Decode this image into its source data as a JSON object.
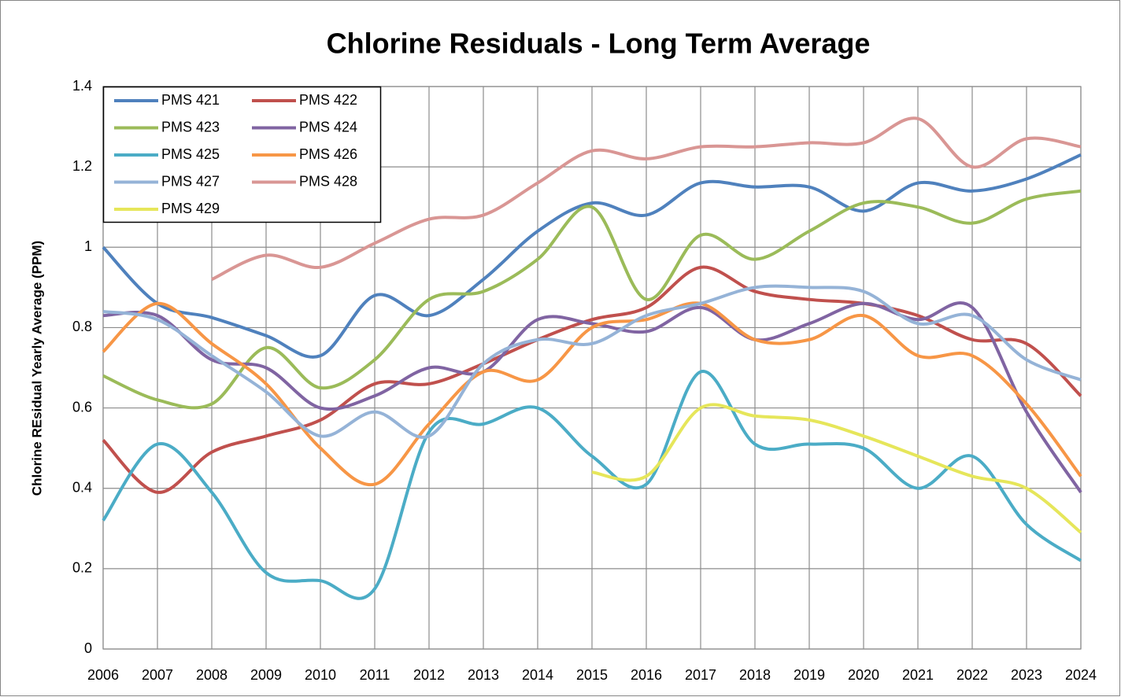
{
  "chart_data": {
    "type": "line",
    "title": "Chlorine Residuals - Long Term Average",
    "y_label": "Chlorine REsidual Yearly Average (PPM)",
    "categories": [
      "2006",
      "2007",
      "2008",
      "2009",
      "2010",
      "2011",
      "2012",
      "2013",
      "2014",
      "2015",
      "2016",
      "2017",
      "2018",
      "2019",
      "2020",
      "2021",
      "2022",
      "2023",
      "2024"
    ],
    "ylim": [
      0,
      1.4
    ],
    "yticks": [
      0,
      0.2,
      0.4,
      0.6,
      0.8,
      1,
      1.2,
      1.4
    ],
    "grid": true,
    "smooth": true,
    "legend": "top-left",
    "series": [
      {
        "name": "PMS 421",
        "color": "#4f81bd",
        "values": [
          1.0,
          0.86,
          0.825,
          0.78,
          0.73,
          0.88,
          0.83,
          0.92,
          1.04,
          1.11,
          1.08,
          1.16,
          1.15,
          1.15,
          1.09,
          1.16,
          1.14,
          1.17,
          1.23
        ]
      },
      {
        "name": "PMS 422",
        "color": "#c0504d",
        "values": [
          0.52,
          0.39,
          0.49,
          0.53,
          0.57,
          0.66,
          0.66,
          0.71,
          0.77,
          0.82,
          0.85,
          0.95,
          0.89,
          0.87,
          0.86,
          0.83,
          0.77,
          0.76,
          0.63
        ]
      },
      {
        "name": "PMS 423",
        "color": "#9bbb59",
        "values": [
          0.68,
          0.62,
          0.61,
          0.75,
          0.65,
          0.72,
          0.87,
          0.89,
          0.97,
          1.1,
          0.87,
          1.03,
          0.97,
          1.04,
          1.11,
          1.1,
          1.06,
          1.12,
          1.14
        ]
      },
      {
        "name": "PMS 424",
        "color": "#8064a2",
        "values": [
          0.83,
          0.83,
          0.72,
          0.7,
          0.6,
          0.63,
          0.7,
          0.69,
          0.82,
          0.81,
          0.79,
          0.85,
          0.77,
          0.81,
          0.86,
          0.82,
          0.85,
          0.59,
          0.39
        ]
      },
      {
        "name": "PMS 425",
        "color": "#4bacc6",
        "values": [
          0.32,
          0.51,
          0.39,
          0.19,
          0.17,
          0.15,
          0.54,
          0.56,
          0.6,
          0.48,
          0.41,
          0.69,
          0.51,
          0.51,
          0.5,
          0.4,
          0.48,
          0.31,
          0.22
        ]
      },
      {
        "name": "PMS 426",
        "color": "#f79646",
        "values": [
          0.74,
          0.86,
          0.76,
          0.66,
          0.5,
          0.41,
          0.56,
          0.69,
          0.67,
          0.8,
          0.82,
          0.86,
          0.77,
          0.77,
          0.83,
          0.73,
          0.73,
          0.61,
          0.43
        ]
      },
      {
        "name": "PMS 427",
        "color": "#95b3d7",
        "values": [
          0.84,
          0.82,
          0.73,
          0.64,
          0.53,
          0.59,
          0.53,
          0.71,
          0.77,
          0.76,
          0.83,
          0.86,
          0.9,
          0.9,
          0.89,
          0.81,
          0.83,
          0.72,
          0.67
        ]
      },
      {
        "name": "PMS 428",
        "color": "#d99694",
        "values": [
          null,
          null,
          0.92,
          0.98,
          0.95,
          1.01,
          1.07,
          1.08,
          1.16,
          1.24,
          1.22,
          1.25,
          1.25,
          1.26,
          1.26,
          1.32,
          1.2,
          1.27,
          1.25
        ]
      },
      {
        "name": "PMS 429",
        "color": "#e6e65a",
        "values": [
          null,
          null,
          null,
          null,
          null,
          null,
          null,
          null,
          null,
          0.44,
          0.43,
          0.6,
          0.58,
          0.57,
          0.53,
          0.48,
          0.43,
          0.4,
          0.29
        ]
      }
    ]
  }
}
